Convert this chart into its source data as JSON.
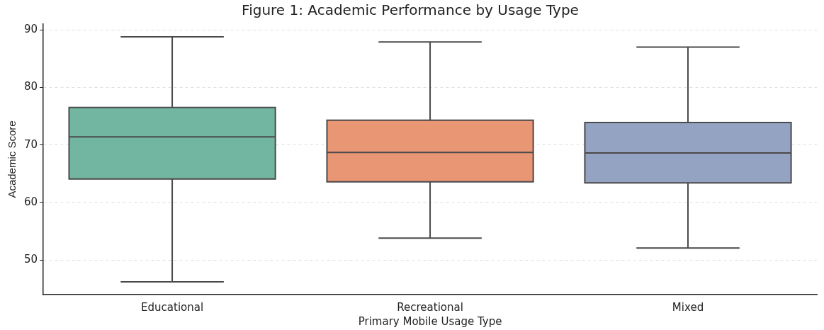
{
  "chart_data": {
    "type": "box",
    "title": "Figure 1: Academic Performance by Usage Type",
    "xlabel": "Primary Mobile Usage Type",
    "ylabel": "Academic Score",
    "categories": [
      "Educational",
      "Recreational",
      "Mixed"
    ],
    "colors": [
      "#72b6a1",
      "#e99675",
      "#95a3c3"
    ],
    "boxes": [
      {
        "low": 46.2,
        "q1": 64.1,
        "median": 71.4,
        "q3": 76.5,
        "high": 88.8
      },
      {
        "low": 53.8,
        "q1": 63.6,
        "median": 68.7,
        "q3": 74.3,
        "high": 87.9
      },
      {
        "low": 52.1,
        "q1": 63.4,
        "median": 68.6,
        "q3": 73.9,
        "high": 87.0
      }
    ],
    "ylim": [
      44,
      91
    ],
    "yticks": [
      50,
      60,
      70,
      80,
      90
    ],
    "grid": "y"
  }
}
